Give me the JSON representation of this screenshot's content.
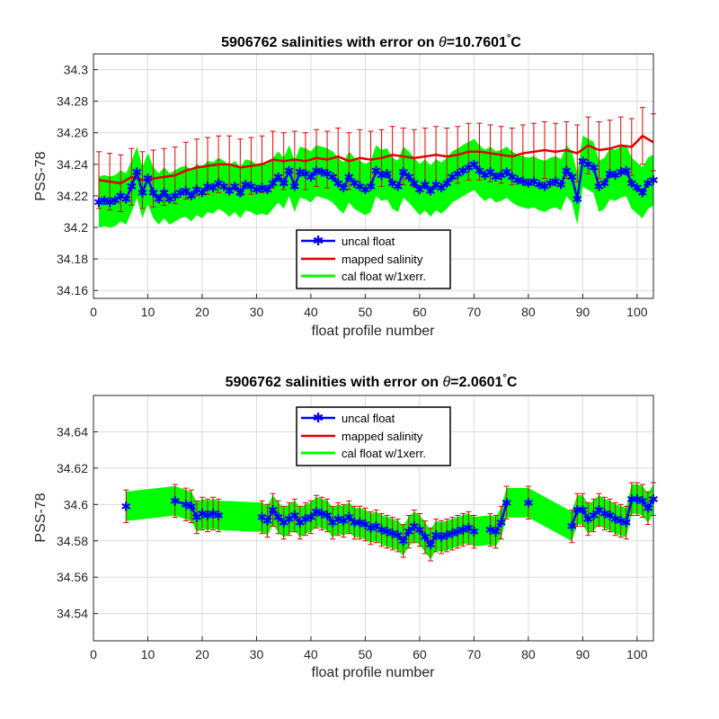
{
  "figure": {
    "panels": [
      {
        "title_prefix": "5906762 salinities with error on ",
        "title_theta": "θ",
        "title_value": "=10.7601",
        "title_deg": "°",
        "title_unit": "C",
        "xlabel": "float profile number",
        "ylabel": "PSS-78",
        "xticks": [
          "0",
          "10",
          "20",
          "30",
          "40",
          "50",
          "60",
          "70",
          "80",
          "90",
          "100"
        ],
        "yticks": [
          "34.16",
          "34.18",
          "34.2",
          "34.22",
          "34.24",
          "34.26",
          "34.28",
          "34.3"
        ],
        "legend": [
          "uncal float",
          "mapped salinity",
          "cal float w/1xerr."
        ]
      },
      {
        "title_prefix": "5906762 salinities with error on ",
        "title_theta": "θ",
        "title_value": "=2.0601",
        "title_deg": "°",
        "title_unit": "C",
        "xlabel": "float profile number",
        "ylabel": "PSS-78",
        "xticks": [
          "0",
          "10",
          "20",
          "30",
          "40",
          "50",
          "60",
          "70",
          "80",
          "90",
          "100"
        ],
        "yticks": [
          "34.54",
          "34.56",
          "34.58",
          "34.6",
          "34.62",
          "34.64"
        ],
        "legend": [
          "uncal float",
          "mapped salinity",
          "cal float w/1xerr."
        ]
      }
    ]
  },
  "colors": {
    "uncal": "#0000ff",
    "mapped": "#e00000",
    "cal_band": "#00ff00",
    "grid": "#dcdcdc",
    "axis": "#262626"
  },
  "chart_data": [
    {
      "type": "line",
      "title": "5906762 salinities with error on θ=10.7601°C",
      "xlabel": "float profile number",
      "ylabel": "PSS-78",
      "xlim": [
        0,
        103
      ],
      "ylim": [
        34.155,
        34.31
      ],
      "grid": true,
      "legend_position": "lower-center",
      "series": [
        {
          "name": "uncal float",
          "x": [
            1,
            2,
            3,
            4,
            5,
            6,
            7,
            8,
            9,
            10,
            11,
            12,
            13,
            14,
            15,
            16,
            17,
            18,
            19,
            20,
            21,
            22,
            23,
            24,
            25,
            26,
            27,
            28,
            29,
            30,
            31,
            32,
            33,
            34,
            35,
            36,
            37,
            38,
            39,
            40,
            41,
            42,
            43,
            44,
            45,
            46,
            47,
            48,
            49,
            50,
            51,
            52,
            53,
            54,
            55,
            56,
            57,
            58,
            59,
            60,
            61,
            62,
            63,
            64,
            65,
            66,
            67,
            68,
            69,
            70,
            71,
            72,
            73,
            74,
            75,
            76,
            77,
            78,
            79,
            80,
            81,
            82,
            83,
            84,
            85,
            86,
            87,
            88,
            89,
            90,
            91,
            92,
            93,
            94,
            95,
            96,
            97,
            98,
            99,
            100,
            101,
            102,
            103
          ],
          "y": [
            34.216,
            34.217,
            34.216,
            34.217,
            34.22,
            34.218,
            34.226,
            34.235,
            34.222,
            34.231,
            34.222,
            34.218,
            34.222,
            34.218,
            34.22,
            34.222,
            34.223,
            34.22,
            34.224,
            34.222,
            34.226,
            34.225,
            34.228,
            34.226,
            34.223,
            34.226,
            34.222,
            34.227,
            34.226,
            34.224,
            34.225,
            34.224,
            34.228,
            34.232,
            34.228,
            34.236,
            34.226,
            34.235,
            34.234,
            34.232,
            34.236,
            34.235,
            34.234,
            34.232,
            34.228,
            34.225,
            34.232,
            34.228,
            34.226,
            34.224,
            34.226,
            34.236,
            34.233,
            34.234,
            34.228,
            34.226,
            34.235,
            34.232,
            34.228,
            34.224,
            34.227,
            34.223,
            34.227,
            34.225,
            34.228,
            34.232,
            34.234,
            34.236,
            34.238,
            34.24,
            34.236,
            34.233,
            34.235,
            34.232,
            34.233,
            34.235,
            34.232,
            34.23,
            34.229,
            34.228,
            34.229,
            34.227,
            34.226,
            34.228,
            34.229,
            34.227,
            34.236,
            34.232,
            34.218,
            34.242,
            34.24,
            34.238,
            34.226,
            34.228,
            34.234,
            34.233,
            34.235,
            34.236,
            34.228,
            34.225,
            34.222,
            34.228,
            34.23
          ]
        },
        {
          "name": "mapped salinity",
          "x": [
            1,
            3,
            5,
            7,
            9,
            11,
            13,
            15,
            17,
            19,
            21,
            23,
            25,
            27,
            29,
            31,
            33,
            35,
            37,
            39,
            41,
            43,
            45,
            47,
            49,
            51,
            53,
            55,
            57,
            59,
            61,
            63,
            65,
            67,
            69,
            71,
            73,
            75,
            77,
            79,
            81,
            83,
            85,
            87,
            89,
            91,
            93,
            95,
            97,
            99,
            101,
            103
          ],
          "y": [
            34.23,
            34.229,
            34.228,
            34.232,
            34.23,
            34.231,
            34.232,
            34.233,
            34.236,
            34.238,
            34.239,
            34.24,
            34.24,
            34.238,
            34.239,
            34.24,
            34.243,
            34.242,
            34.243,
            34.242,
            34.244,
            34.243,
            34.245,
            34.242,
            34.244,
            34.243,
            34.244,
            34.246,
            34.245,
            34.244,
            34.245,
            34.246,
            34.245,
            34.246,
            34.248,
            34.248,
            34.247,
            34.246,
            34.245,
            34.247,
            34.248,
            34.249,
            34.248,
            34.249,
            34.247,
            34.252,
            34.249,
            34.25,
            34.252,
            34.251,
            34.258,
            34.254
          ]
        }
      ]
    },
    {
      "type": "line",
      "title": "5906762 salinities with error on θ=2.0601°C",
      "xlabel": "float profile number",
      "ylabel": "PSS-78",
      "xlim": [
        0,
        103
      ],
      "ylim": [
        34.525,
        34.66
      ],
      "grid": true,
      "legend_position": "top-center",
      "series": [
        {
          "name": "uncal float",
          "x": [
            6,
            15,
            17,
            18,
            19,
            20,
            21,
            22,
            23,
            31,
            32,
            33,
            34,
            35,
            36,
            37,
            38,
            39,
            40,
            41,
            42,
            43,
            44,
            45,
            46,
            47,
            48,
            49,
            50,
            51,
            52,
            53,
            54,
            55,
            56,
            57,
            58,
            59,
            60,
            61,
            62,
            63,
            64,
            65,
            66,
            67,
            68,
            69,
            70,
            73,
            74,
            75,
            76,
            80,
            88,
            89,
            90,
            91,
            92,
            93,
            94,
            95,
            96,
            97,
            98,
            99,
            100,
            101,
            102,
            103
          ],
          "y": [
            34.599,
            34.602,
            34.6,
            34.599,
            34.593,
            34.595,
            34.594,
            34.595,
            34.594,
            34.593,
            34.591,
            34.597,
            34.593,
            34.59,
            34.592,
            34.594,
            34.59,
            34.592,
            34.593,
            34.596,
            34.595,
            34.594,
            34.59,
            34.592,
            34.591,
            34.593,
            34.59,
            34.59,
            34.589,
            34.587,
            34.588,
            34.586,
            34.585,
            34.584,
            34.583,
            34.58,
            34.585,
            34.588,
            34.586,
            34.582,
            34.578,
            34.583,
            34.582,
            34.583,
            34.584,
            34.585,
            34.586,
            34.587,
            34.585,
            34.586,
            34.585,
            34.59,
            34.601,
            34.601,
            34.588,
            34.597,
            34.597,
            34.592,
            34.594,
            34.597,
            34.595,
            34.594,
            34.592,
            34.591,
            34.59,
            34.603,
            34.603,
            34.602,
            34.598,
            34.603
          ]
        }
      ]
    }
  ]
}
